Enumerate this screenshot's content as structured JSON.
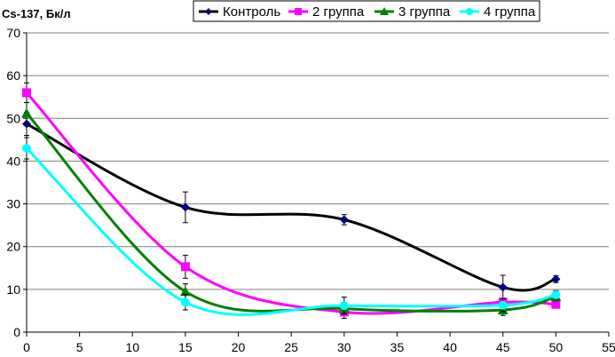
{
  "chart_data": {
    "type": "line",
    "title": "",
    "ylabel": "Cs-137, Бк/л",
    "xlabel": "",
    "xlim": [
      0,
      55
    ],
    "ylim": [
      0,
      70
    ],
    "xticks": [
      "0",
      "5",
      "10",
      "15",
      "20",
      "25",
      "30",
      "35",
      "40",
      "45",
      "50",
      "55"
    ],
    "yticks": [
      "0",
      "10",
      "20",
      "30",
      "40",
      "50",
      "60",
      "70"
    ],
    "grid": "horizontal",
    "legend_position": "top",
    "x": [
      0,
      15,
      30,
      45,
      50
    ],
    "series": [
      {
        "name": "Контроль",
        "color": "#000000",
        "marker_color": "#000080",
        "marker": "diamond",
        "values": [
          48.7,
          29.2,
          26.3,
          10.5,
          12.4
        ],
        "errors": [
          2.7,
          3.6,
          1.2,
          2.8,
          0.8
        ]
      },
      {
        "name": "2 группа",
        "color": "#ff00ff",
        "marker_color": "#ff00ff",
        "marker": "square",
        "values": [
          56.0,
          15.3,
          4.7,
          7.0,
          6.5
        ],
        "errors": [
          2.3,
          2.7,
          1.5,
          1.0,
          0.8
        ]
      },
      {
        "name": "3 группа",
        "color": "#008000",
        "marker_color": "#008000",
        "marker": "triangle",
        "values": [
          51.2,
          9.5,
          5.5,
          5.2,
          8.3
        ],
        "errors": [
          2.5,
          1.8,
          1.2,
          1.3,
          1.0
        ]
      },
      {
        "name": "4 группа",
        "color": "#00ffff",
        "marker_color": "#00ffff",
        "marker": "circle",
        "values": [
          43.0,
          7.0,
          6.2,
          6.3,
          8.7
        ],
        "errors": [
          2.5,
          1.8,
          2.0,
          1.5,
          1.0
        ]
      }
    ]
  }
}
